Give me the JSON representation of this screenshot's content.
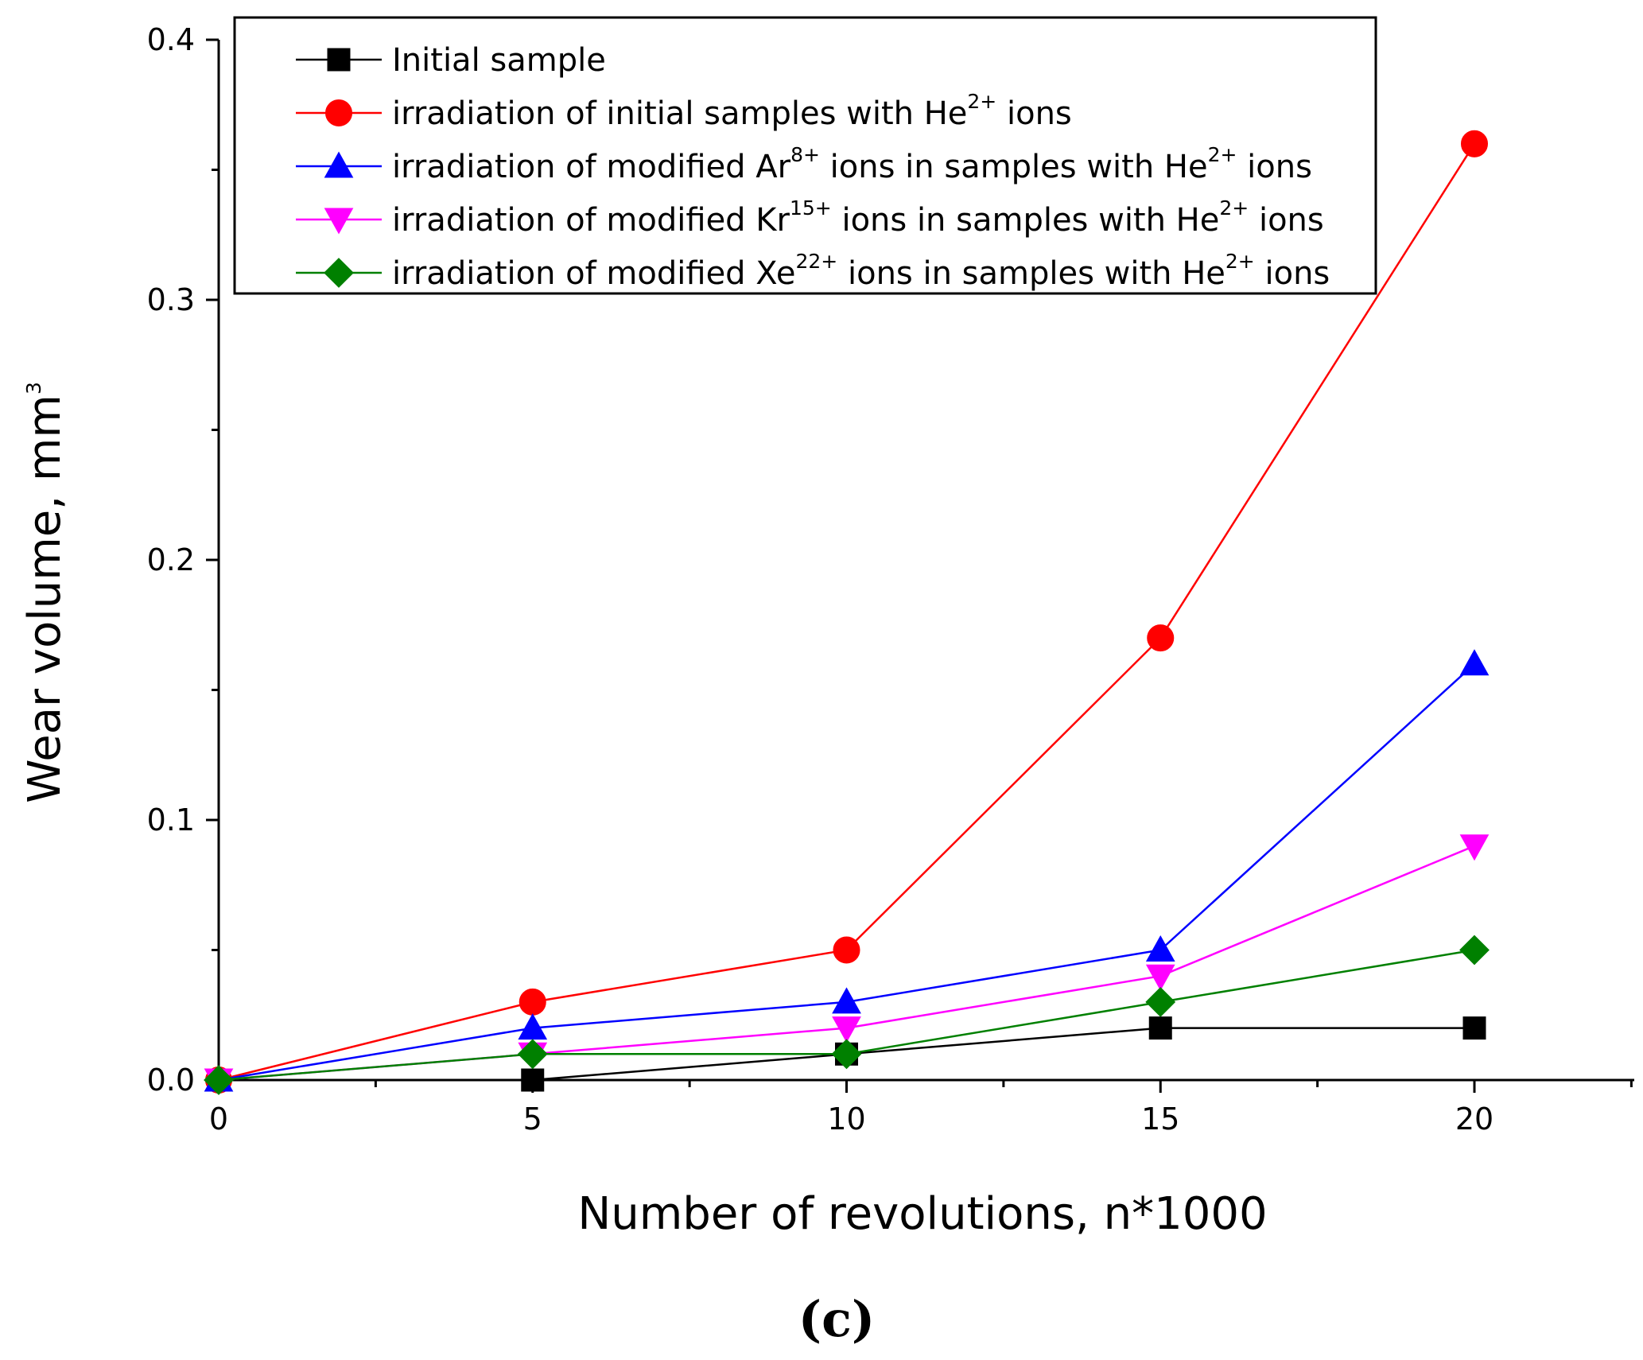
{
  "chart_data": {
    "type": "line",
    "xlabel": "Number of revolutions, n*1000",
    "ylabel": "Wear volume, mm",
    "ylabel_sup": "3",
    "xlim": [
      0,
      22.5
    ],
    "ylim": [
      0,
      0.4
    ],
    "xticks": [
      0,
      5,
      10,
      15,
      20
    ],
    "xtick_labels": [
      "0",
      "5",
      "10",
      "15",
      "20"
    ],
    "yticks": [
      0.0,
      0.1,
      0.2,
      0.3,
      0.4
    ],
    "ytick_labels": [
      "0.0",
      "0.1",
      "0.2",
      "0.3",
      "0.4"
    ],
    "grid": false,
    "legend_position": "top",
    "x": [
      0,
      5,
      10,
      15,
      20
    ],
    "series": [
      {
        "name": "Initial sample",
        "marker": "square",
        "color": "#000000",
        "values": [
          0,
          0,
          0.01,
          0.02,
          0.02
        ],
        "legend_parts": [
          {
            "t": "Initial sample",
            "sup": false
          }
        ]
      },
      {
        "name": "irradiation of initial samples with He2+ ions",
        "marker": "circle",
        "color": "#ff0000",
        "values": [
          0,
          0.03,
          0.05,
          0.17,
          0.36
        ],
        "legend_parts": [
          {
            "t": "irradiation of initial samples with He",
            "sup": false
          },
          {
            "t": "2+",
            "sup": true
          },
          {
            "t": " ions",
            "sup": false
          }
        ]
      },
      {
        "name": "irradiation of modified Ar8+ ions in samples with He2+ ions",
        "marker": "triangle-up",
        "color": "#0000ff",
        "values": [
          0,
          0.02,
          0.03,
          0.05,
          0.16
        ],
        "legend_parts": [
          {
            "t": "irradiation of modified Ar",
            "sup": false
          },
          {
            "t": "8+",
            "sup": true
          },
          {
            "t": " ions in samples with He",
            "sup": false
          },
          {
            "t": "2+",
            "sup": true
          },
          {
            "t": " ions",
            "sup": false
          }
        ]
      },
      {
        "name": "irradiation of modified Kr15+ ions in samples with He2+ ions",
        "marker": "triangle-down",
        "color": "#ff00ff",
        "values": [
          0,
          0.01,
          0.02,
          0.04,
          0.09
        ],
        "legend_parts": [
          {
            "t": "irradiation of modified Kr",
            "sup": false
          },
          {
            "t": "15+",
            "sup": true
          },
          {
            "t": " ions in samples with He",
            "sup": false
          },
          {
            "t": "2+",
            "sup": true
          },
          {
            "t": " ions",
            "sup": false
          }
        ]
      },
      {
        "name": "irradiation of modified Xe22+ ions in samples with He2+ ions",
        "marker": "diamond",
        "color": "#008000",
        "values": [
          0,
          0.01,
          0.01,
          0.03,
          0.05
        ],
        "legend_parts": [
          {
            "t": "irradiation of modified Xe",
            "sup": false
          },
          {
            "t": "22+",
            "sup": true
          },
          {
            "t": " ions in samples with He",
            "sup": false
          },
          {
            "t": "2+",
            "sup": true
          },
          {
            "t": " ions",
            "sup": false
          }
        ]
      }
    ],
    "panel_label": "(c)"
  }
}
